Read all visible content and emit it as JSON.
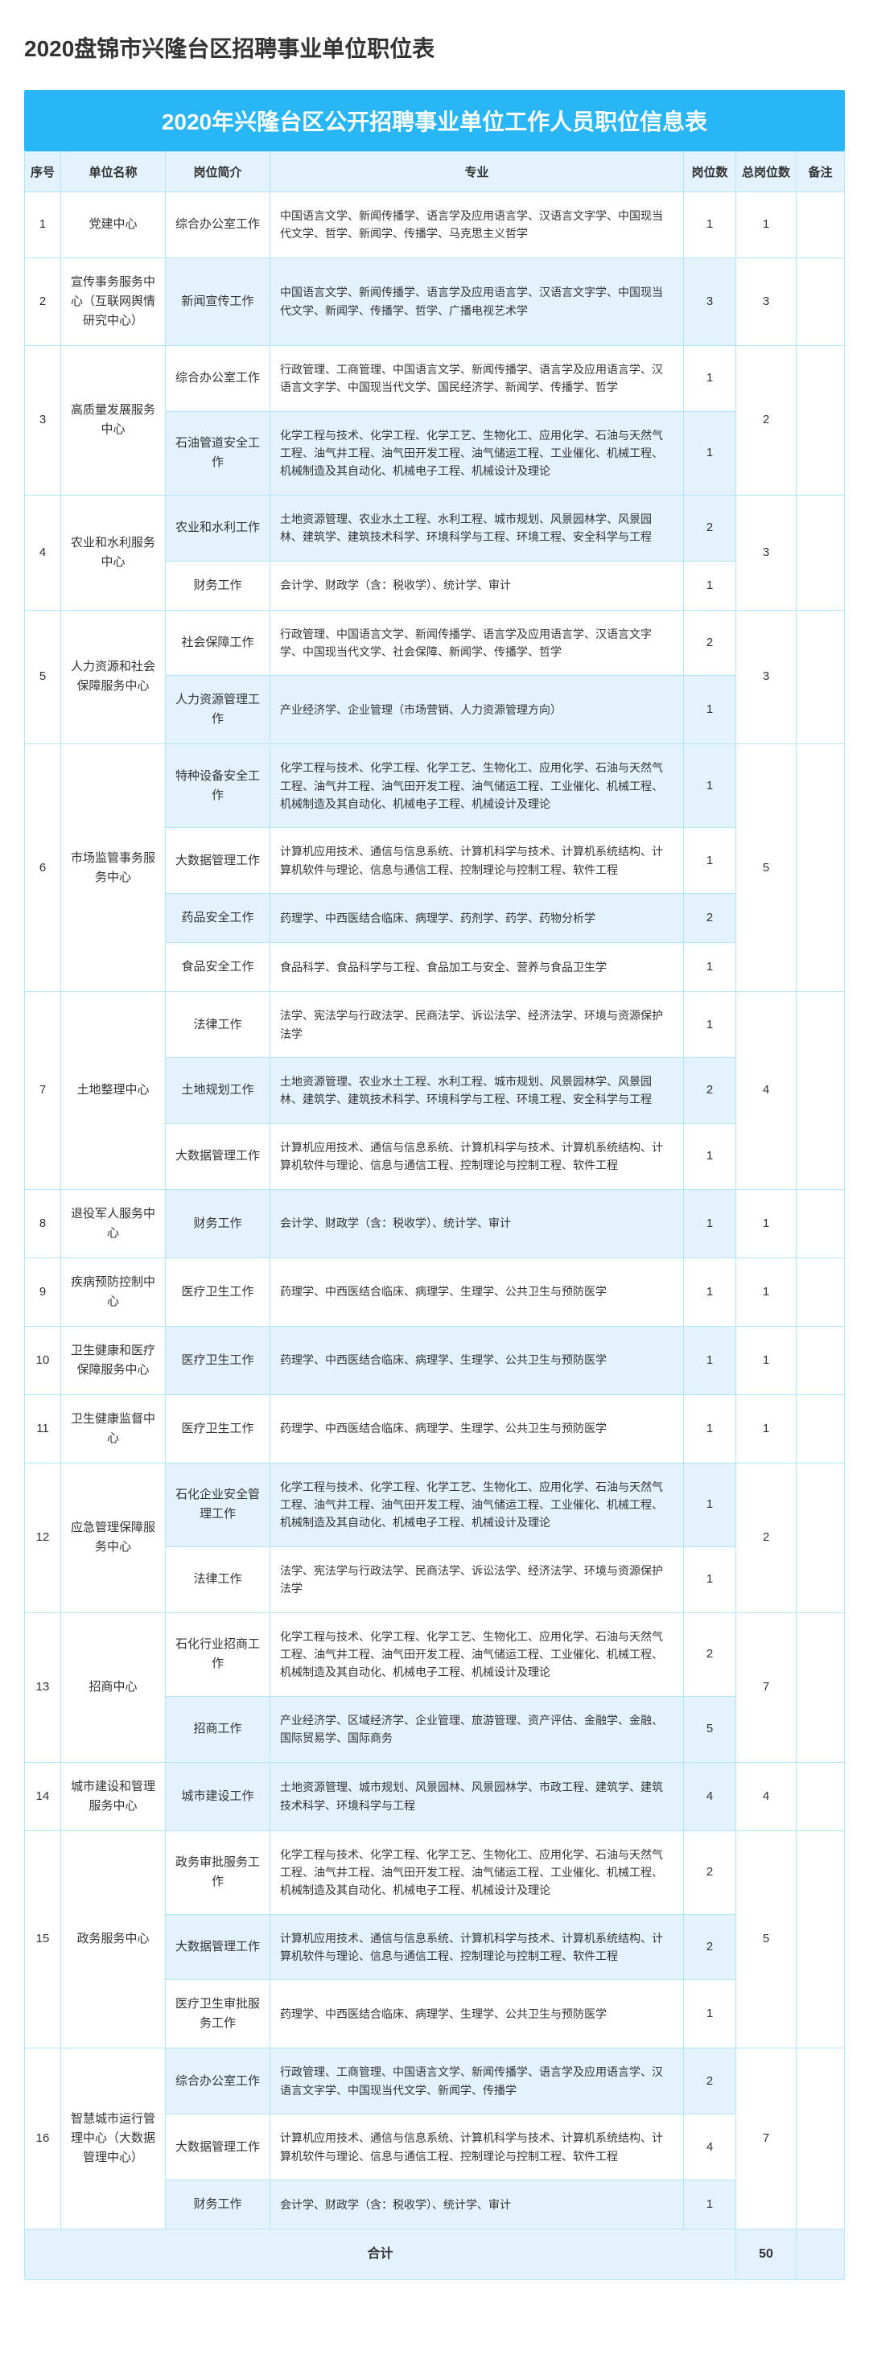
{
  "page_title": "2020盘锦市兴隆台区招聘事业单位职位表",
  "banner_title": "2020年兴隆台区公开招聘事业单位工作人员职位信息表",
  "headers": {
    "seq": "序号",
    "unit": "单位名称",
    "job": "岗位简介",
    "major": "专业",
    "n1": "岗位数",
    "n2": "总岗位数",
    "note": "备注"
  },
  "footer": {
    "label": "合计",
    "total": "50"
  },
  "rows": [
    {
      "seq": "1",
      "unit": "党建中心",
      "subs": [
        {
          "job": "综合办公室工作",
          "major": "中国语言文学、新闻传播学、语言学及应用语言学、汉语言文字学、中国现当代文学、哲学、新闻学、传播学、马克思主义哲学",
          "n1": "1"
        }
      ],
      "n2": "1",
      "alt": false
    },
    {
      "seq": "2",
      "unit": "宣传事务服务中心（互联网舆情研究中心）",
      "subs": [
        {
          "job": "新闻宣传工作",
          "major": "中国语言文学、新闻传播学、语言学及应用语言学、汉语言文字学、中国现当代文学、新闻学、传播学、哲学、广播电视艺术学",
          "n1": "3"
        }
      ],
      "n2": "3",
      "alt": true
    },
    {
      "seq": "3",
      "unit": "高质量发展服务中心",
      "subs": [
        {
          "job": "综合办公室工作",
          "major": "行政管理、工商管理、中国语言文学、新闻传播学、语言学及应用语言学、汉语言文字学、中国现当代文学、国民经济学、新闻学、传播学、哲学",
          "n1": "1"
        },
        {
          "job": "石油管道安全工作",
          "major": "化学工程与技术、化学工程、化学工艺、生物化工、应用化学、石油与天然气工程、油气井工程、油气田开发工程、油气储运工程、工业催化、机械工程、机械制造及其自动化、机械电子工程、机械设计及理论",
          "n1": "1"
        }
      ],
      "n2": "2",
      "alt": false
    },
    {
      "seq": "4",
      "unit": "农业和水利服务中心",
      "subs": [
        {
          "job": "农业和水利工作",
          "major": "土地资源管理、农业水土工程、水利工程、城市规划、风景园林学、风景园林、建筑学、建筑技术科学、环境科学与工程、环境工程、安全科学与工程",
          "n1": "2"
        },
        {
          "job": "财务工作",
          "major": "会计学、财政学（含：税收学）、统计学、审计",
          "n1": "1"
        }
      ],
      "n2": "3",
      "alt": true
    },
    {
      "seq": "5",
      "unit": "人力资源和社会保障服务中心",
      "subs": [
        {
          "job": "社会保障工作",
          "major": "行政管理、中国语言文学、新闻传播学、语言学及应用语言学、汉语言文字学、中国现当代文学、社会保障、新闻学、传播学、哲学",
          "n1": "2"
        },
        {
          "job": "人力资源管理工作",
          "major": "产业经济学、企业管理（市场营销、人力资源管理方向）",
          "n1": "1"
        }
      ],
      "n2": "3",
      "alt": false
    },
    {
      "seq": "6",
      "unit": "市场监管事务服务中心",
      "subs": [
        {
          "job": "特种设备安全工作",
          "major": "化学工程与技术、化学工程、化学工艺、生物化工、应用化学、石油与天然气工程、油气井工程、油气田开发工程、油气储运工程、工业催化、机械工程、机械制造及其自动化、机械电子工程、机械设计及理论",
          "n1": "1"
        },
        {
          "job": "大数据管理工作",
          "major": "计算机应用技术、通信与信息系统、计算机科学与技术、计算机系统结构、计算机软件与理论、信息与通信工程、控制理论与控制工程、软件工程",
          "n1": "1"
        },
        {
          "job": "药品安全工作",
          "major": "药理学、中西医结合临床、病理学、药剂学、药学、药物分析学",
          "n1": "2"
        },
        {
          "job": "食品安全工作",
          "major": "食品科学、食品科学与工程、食品加工与安全、营养与食品卫生学",
          "n1": "1"
        }
      ],
      "n2": "5",
      "alt": true
    },
    {
      "seq": "7",
      "unit": "土地整理中心",
      "subs": [
        {
          "job": "法律工作",
          "major": "法学、宪法学与行政法学、民商法学、诉讼法学、经济法学、环境与资源保护法学",
          "n1": "1"
        },
        {
          "job": "土地规划工作",
          "major": "土地资源管理、农业水土工程、水利工程、城市规划、风景园林学、风景园林、建筑学、建筑技术科学、环境科学与工程、环境工程、安全科学与工程",
          "n1": "2"
        },
        {
          "job": "大数据管理工作",
          "major": "计算机应用技术、通信与信息系统、计算机科学与技术、计算机系统结构、计算机软件与理论、信息与通信工程、控制理论与控制工程、软件工程",
          "n1": "1"
        }
      ],
      "n2": "4",
      "alt": false
    },
    {
      "seq": "8",
      "unit": "退役军人服务中心",
      "subs": [
        {
          "job": "财务工作",
          "major": "会计学、财政学（含：税收学）、统计学、审计",
          "n1": "1"
        }
      ],
      "n2": "1",
      "alt": true
    },
    {
      "seq": "9",
      "unit": "疾病预防控制中心",
      "subs": [
        {
          "job": "医疗卫生工作",
          "major": "药理学、中西医结合临床、病理学、生理学、公共卫生与预防医学",
          "n1": "1"
        }
      ],
      "n2": "1",
      "alt": false
    },
    {
      "seq": "10",
      "unit": "卫生健康和医疗保障服务中心",
      "subs": [
        {
          "job": "医疗卫生工作",
          "major": "药理学、中西医结合临床、病理学、生理学、公共卫生与预防医学",
          "n1": "1"
        }
      ],
      "n2": "1",
      "alt": true
    },
    {
      "seq": "11",
      "unit": "卫生健康监督中心",
      "subs": [
        {
          "job": "医疗卫生工作",
          "major": "药理学、中西医结合临床、病理学、生理学、公共卫生与预防医学",
          "n1": "1"
        }
      ],
      "n2": "1",
      "alt": false
    },
    {
      "seq": "12",
      "unit": "应急管理保障服务中心",
      "subs": [
        {
          "job": "石化企业安全管理工作",
          "major": "化学工程与技术、化学工程、化学工艺、生物化工、应用化学、石油与天然气工程、油气井工程、油气田开发工程、油气储运工程、工业催化、机械工程、机械制造及其自动化、机械电子工程、机械设计及理论",
          "n1": "1"
        },
        {
          "job": "法律工作",
          "major": "法学、宪法学与行政法学、民商法学、诉讼法学、经济法学、环境与资源保护法学",
          "n1": "1"
        }
      ],
      "n2": "2",
      "alt": true
    },
    {
      "seq": "13",
      "unit": "招商中心",
      "subs": [
        {
          "job": "石化行业招商工作",
          "major": "化学工程与技术、化学工程、化学工艺、生物化工、应用化学、石油与天然气工程、油气井工程、油气田开发工程、油气储运工程、工业催化、机械工程、机械制造及其自动化、机械电子工程、机械设计及理论",
          "n1": "2"
        },
        {
          "job": "招商工作",
          "major": "产业经济学、区域经济学、企业管理、旅游管理、资产评估、金融学、金融、国际贸易学、国际商务",
          "n1": "5"
        }
      ],
      "n2": "7",
      "alt": false
    },
    {
      "seq": "14",
      "unit": "城市建设和管理服务中心",
      "subs": [
        {
          "job": "城市建设工作",
          "major": "土地资源管理、城市规划、风景园林、风景园林学、市政工程、建筑学、建筑技术科学、环境科学与工程",
          "n1": "4"
        }
      ],
      "n2": "4",
      "alt": true
    },
    {
      "seq": "15",
      "unit": "政务服务中心",
      "subs": [
        {
          "job": "政务审批服务工作",
          "major": "化学工程与技术、化学工程、化学工艺、生物化工、应用化学、石油与天然气工程、油气井工程、油气田开发工程、油气储运工程、工业催化、机械工程、机械制造及其自动化、机械电子工程、机械设计及理论",
          "n1": "2"
        },
        {
          "job": "大数据管理工作",
          "major": "计算机应用技术、通信与信息系统、计算机科学与技术、计算机系统结构、计算机软件与理论、信息与通信工程、控制理论与控制工程、软件工程",
          "n1": "2"
        },
        {
          "job": "医疗卫生审批服务工作",
          "major": "药理学、中西医结合临床、病理学、生理学、公共卫生与预防医学",
          "n1": "1"
        }
      ],
      "n2": "5",
      "alt": false
    },
    {
      "seq": "16",
      "unit": "智慧城市运行管理中心（大数据管理中心）",
      "subs": [
        {
          "job": "综合办公室工作",
          "major": "行政管理、工商管理、中国语言文学、新闻传播学、语言学及应用语言学、汉语言文字学、中国现当代文学、新闻学、传播学",
          "n1": "2"
        },
        {
          "job": "大数据管理工作",
          "major": "计算机应用技术、通信与信息系统、计算机科学与技术、计算机系统结构、计算机软件与理论、信息与通信工程、控制理论与控制工程、软件工程",
          "n1": "4"
        },
        {
          "job": "财务工作",
          "major": "会计学、财政学（含：税收学）、统计学、审计",
          "n1": "1"
        }
      ],
      "n2": "7",
      "alt": true
    }
  ]
}
